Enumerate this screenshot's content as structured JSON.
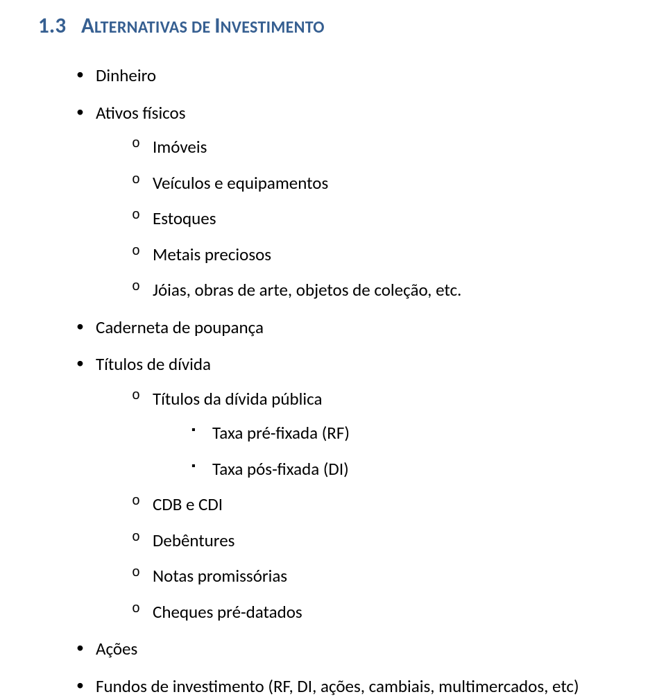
{
  "heading": {
    "number": "1.3",
    "title_smallcaps_parts": [
      {
        "first": "A",
        "rest": "LTERNATIVAS DE "
      },
      {
        "first": "I",
        "rest": "NVESTIMENTO"
      }
    ],
    "color": "#365f91"
  },
  "bullets": [
    {
      "text": "Dinheiro"
    },
    {
      "text": "Ativos físicos",
      "children": [
        {
          "text": "Imóveis"
        },
        {
          "text": "Veículos e equipamentos"
        },
        {
          "text": "Estoques"
        },
        {
          "text": "Metais preciosos"
        },
        {
          "text": "Jóias, obras de arte, objetos de coleção, etc."
        }
      ]
    },
    {
      "text": "Caderneta de poupança"
    },
    {
      "text": "Títulos de dívida",
      "children": [
        {
          "text": "Títulos da dívida pública",
          "children": [
            {
              "text": "Taxa pré-fixada (RF)"
            },
            {
              "text": "Taxa pós-fixada (DI)"
            }
          ]
        },
        {
          "text": "CDB e CDI"
        },
        {
          "text": "Debêntures"
        },
        {
          "text": "Notas promissórias"
        },
        {
          "text": "Cheques pré-datados"
        }
      ]
    },
    {
      "text": "Ações"
    },
    {
      "text": "Fundos de investimento (RF, DI, ações, cambiais, multimercados, etc)"
    }
  ],
  "colors": {
    "text": "#000000",
    "background": "#ffffff",
    "heading": "#365f91"
  },
  "typography": {
    "body_font": "Calibri",
    "body_size_pt": 18,
    "heading_size_pt": 22
  }
}
